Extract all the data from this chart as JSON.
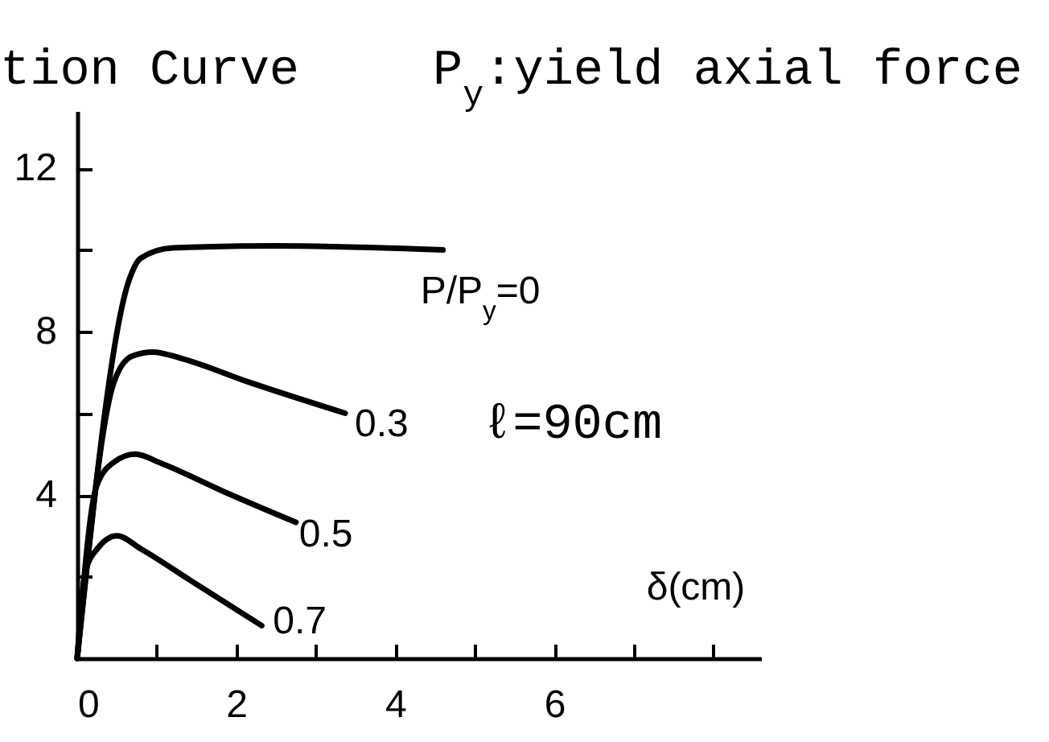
{
  "chart_data": {
    "type": "line",
    "title": "tion Curve",
    "xlabel": "δ(cm)",
    "annotations": [
      "P$_{y}$:yield axial force",
      "ℓ=90cm"
    ],
    "series": [
      {
        "name": "P/P$_{y}$=0",
        "color": "#000000",
        "x": [
          0,
          0.65,
          0.8,
          1.2,
          2.5,
          4.6
        ],
        "values": [
          0,
          9.25,
          9.8,
          10.05,
          10.1,
          10.0
        ]
      },
      {
        "name": "0.3",
        "color": "#000000",
        "x": [
          0,
          0.46,
          0.69,
          0.95,
          1.3,
          2.1,
          3.37
        ],
        "values": [
          0,
          6.75,
          7.4,
          7.5,
          7.35,
          6.8,
          6.0
        ]
      },
      {
        "name": "0.5",
        "color": "#000000",
        "x": [
          0,
          0.24,
          0.46,
          0.73,
          1.05,
          1.88,
          2.75
        ],
        "values": [
          0,
          4.2,
          4.8,
          5.0,
          4.78,
          4.05,
          3.33
        ]
      },
      {
        "name": "0.7",
        "color": "#000000",
        "x": [
          0,
          0.1,
          0.26,
          0.5,
          0.8,
          1.43,
          2.32
        ],
        "values": [
          0,
          2.1,
          2.7,
          3.0,
          2.68,
          1.9,
          0.8
        ]
      }
    ],
    "xlim": [
      0,
      8.6
    ],
    "ylim": [
      0,
      13.4
    ],
    "xticks": [
      0,
      {
        "value": 1,
        "label": null
      },
      2,
      {
        "value": 3,
        "label": null
      },
      4,
      {
        "value": 5,
        "label": null
      },
      6,
      {
        "value": 7,
        "label": null
      },
      {
        "value": 8,
        "label": null
      }
    ],
    "yticks": [
      {
        "value": 2,
        "label": null
      },
      4,
      {
        "value": 6,
        "label": null
      },
      8,
      {
        "value": 10,
        "label": null
      },
      12
    ],
    "grid": false,
    "legend": false,
    "marker": "none",
    "line_style": "solid"
  }
}
